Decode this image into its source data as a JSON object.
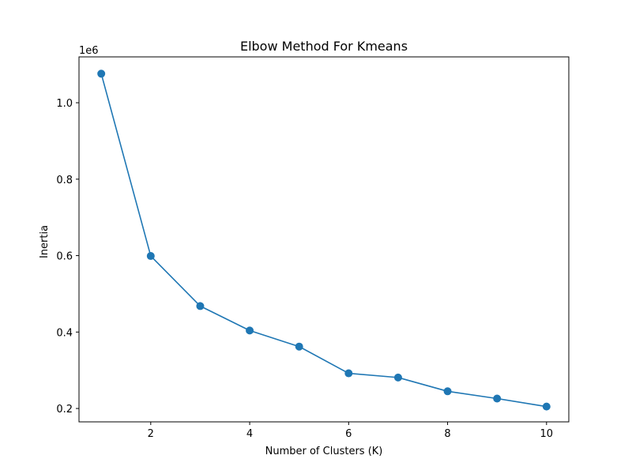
{
  "chart_data": {
    "type": "line",
    "title": "Elbow Method For Kmeans",
    "xlabel": "Number of Clusters (K)",
    "ylabel": "Inertia",
    "y_offset_label": "1e6",
    "xlim": [
      0.55,
      10.45
    ],
    "ylim": [
      0.165,
      1.12
    ],
    "x_ticks": [
      2,
      4,
      6,
      8,
      10
    ],
    "x_tick_labels": [
      "2",
      "4",
      "6",
      "8",
      "10"
    ],
    "y_ticks": [
      0.2,
      0.4,
      0.6,
      0.8,
      1.0
    ],
    "y_tick_labels": [
      "0.2",
      "0.4",
      "0.6",
      "0.8",
      "1.0"
    ],
    "grid": false,
    "line_color": "#1f77b4",
    "marker": "circle",
    "series": [
      {
        "x": [
          1,
          2,
          3,
          4,
          5,
          6,
          7,
          8,
          9,
          10
        ],
        "y": [
          1.076,
          0.599,
          0.468,
          0.404,
          0.362,
          0.292,
          0.281,
          0.245,
          0.226,
          0.205
        ]
      }
    ]
  }
}
